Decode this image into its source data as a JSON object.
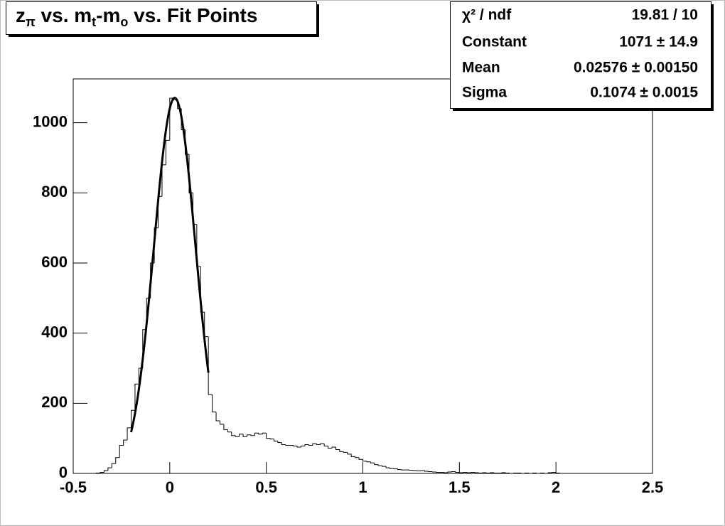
{
  "chart_data": {
    "type": "histogram",
    "title": [
      {
        "text": "z"
      },
      {
        "text": "π",
        "sub": true
      },
      {
        "text": " vs. m"
      },
      {
        "text": "t",
        "sub": true
      },
      {
        "text": "-m"
      },
      {
        "text": "o",
        "sub": true
      },
      {
        "text": " vs. Fit Points"
      }
    ],
    "bins": [
      -0.5,
      -0.48,
      -0.46,
      -0.44,
      -0.42,
      -0.4,
      -0.38,
      -0.36,
      -0.34,
      -0.32,
      -0.3,
      -0.28,
      -0.26,
      -0.24,
      -0.22,
      -0.2,
      -0.18,
      -0.16,
      -0.14,
      -0.12,
      -0.1,
      -0.08,
      -0.06,
      -0.04,
      -0.02,
      0,
      0.02,
      0.04,
      0.06,
      0.08,
      0.1,
      0.12,
      0.14,
      0.16,
      0.18,
      0.2,
      0.22,
      0.24,
      0.26,
      0.28,
      0.3,
      0.32,
      0.34,
      0.36,
      0.38,
      0.4,
      0.42,
      0.44,
      0.46,
      0.48,
      0.5,
      0.52,
      0.54,
      0.56,
      0.58,
      0.6,
      0.62,
      0.64,
      0.66,
      0.68,
      0.7,
      0.72,
      0.74,
      0.76,
      0.78,
      0.8,
      0.82,
      0.84,
      0.86,
      0.88,
      0.9,
      0.92,
      0.94,
      0.96,
      0.98,
      1,
      1.02,
      1.04,
      1.06,
      1.08,
      1.1,
      1.12,
      1.14,
      1.16,
      1.18,
      1.2,
      1.22,
      1.24,
      1.26,
      1.28,
      1.3,
      1.32,
      1.34,
      1.36,
      1.38,
      1.4,
      1.42,
      1.44,
      1.46,
      1.48,
      1.5,
      1.52,
      1.54,
      1.56,
      1.58,
      1.6,
      1.62,
      1.64,
      1.66,
      1.68,
      1.7,
      1.72,
      1.74,
      1.76,
      1.78,
      1.8,
      1.82,
      1.84,
      1.86,
      1.88,
      1.9,
      1.92,
      1.94,
      1.96,
      1.98,
      2,
      2.02,
      2.04,
      2.06,
      2.08,
      2.1,
      2.12,
      2.14,
      2.16,
      2.18,
      2.2,
      2.22,
      2.24,
      2.26,
      2.28,
      2.3,
      2.32,
      2.34,
      2.36,
      2.38,
      2.4,
      2.42,
      2.44,
      2.46,
      2.48,
      2.5
    ],
    "values": [
      0,
      0,
      0,
      0,
      0,
      0,
      1,
      3,
      8,
      16,
      28,
      45,
      80,
      95,
      130,
      180,
      255,
      300,
      410,
      500,
      600,
      700,
      790,
      880,
      950,
      1070,
      1065,
      1040,
      980,
      910,
      800,
      710,
      590,
      460,
      390,
      225,
      175,
      150,
      140,
      125,
      118,
      108,
      105,
      112,
      105,
      110,
      108,
      115,
      112,
      115,
      100,
      98,
      92,
      88,
      82,
      80,
      80,
      78,
      75,
      78,
      82,
      80,
      85,
      82,
      85,
      78,
      72,
      75,
      68,
      62,
      60,
      55,
      48,
      45,
      40,
      35,
      33,
      30,
      25,
      22,
      20,
      16,
      14,
      13,
      11,
      10,
      10,
      9,
      8,
      7,
      8,
      6,
      5,
      4,
      3,
      3,
      2,
      4,
      5,
      3,
      2,
      3,
      2,
      3,
      2,
      1,
      2,
      1,
      2,
      1,
      1,
      2,
      1,
      0,
      1,
      1,
      0,
      1,
      0,
      1,
      0,
      1,
      0,
      2,
      3,
      1,
      0,
      0,
      0,
      0,
      0,
      0,
      0,
      0,
      0,
      0,
      0,
      0,
      0,
      0,
      0,
      0,
      0,
      0,
      0,
      0,
      0,
      0,
      0,
      0
    ],
    "color": "#000000",
    "xlim": [
      -0.5,
      2.5
    ],
    "ylim": [
      0,
      1125
    ],
    "xticks": [
      -0.5,
      0,
      0.5,
      1,
      1.5,
      2,
      2.5
    ],
    "yticks": [
      0,
      200,
      400,
      600,
      800,
      1000
    ],
    "fit_range": [
      -0.2,
      0.2
    ],
    "stats": [
      {
        "name": "χ² / ndf",
        "label": "19.81 / 10"
      },
      {
        "name": "Constant",
        "value": 1071,
        "error": 14.9,
        "label": "1071 ± 14.9"
      },
      {
        "name": "Mean",
        "value": 0.02576,
        "error": 0.0015,
        "label": "0.02576 ± 0.00150"
      },
      {
        "name": "Sigma",
        "value": 0.1074,
        "error": 0.0015,
        "label": "0.1074 ± 0.0015"
      }
    ]
  }
}
